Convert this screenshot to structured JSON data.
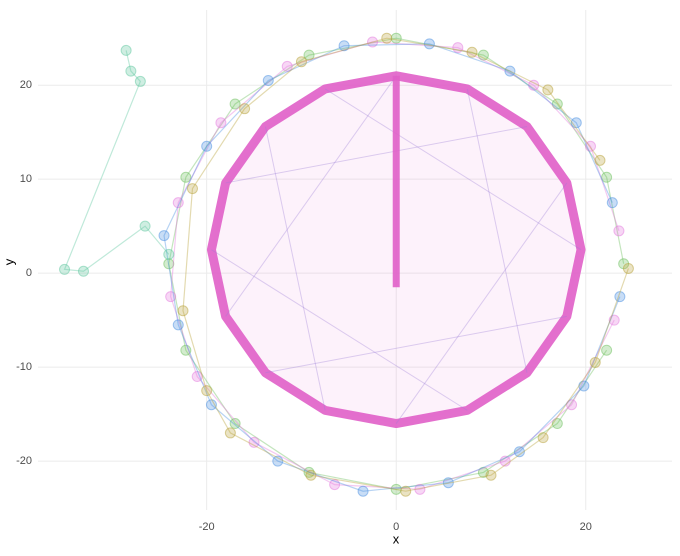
{
  "chart_data": {
    "type": "scatter",
    "xlabel": "x",
    "ylabel": "y",
    "xlim": [
      -37.8,
      29.1
    ],
    "ylim": [
      -25.2,
      28
    ],
    "xticks": [
      -20,
      0,
      20
    ],
    "yticks": [
      -20,
      -10,
      0,
      10,
      20
    ],
    "grid": true,
    "series": [
      {
        "color": "#e05fc8",
        "mode": "polygon",
        "x": [
          19.5,
          18,
          13.8,
          7.5,
          0,
          -7.5,
          -13.8,
          -18,
          -19.5,
          -18,
          -13.8,
          -7.5,
          0,
          7.5,
          13.8,
          18
        ],
        "y": [
          2.5,
          9.6,
          15.6,
          19.6,
          21,
          19.6,
          15.6,
          9.6,
          2.5,
          -4.6,
          -10.6,
          -14.6,
          -16,
          -14.6,
          -10.6,
          -4.6
        ]
      },
      {
        "color": "#e05fc8",
        "mode": "line",
        "x": [
          0,
          0
        ],
        "y": [
          -1.5,
          21
        ]
      },
      {
        "color": "#6cbf5c",
        "mode": "lines+markers",
        "x": [
          24,
          22.2,
          17,
          9.2,
          0,
          -9.2,
          -17,
          -22.2,
          -24,
          -22.2,
          -17,
          -9.2,
          0,
          9.2,
          17,
          22.2
        ],
        "y": [
          1,
          10.2,
          18,
          23.2,
          25,
          23.2,
          18,
          10.2,
          1,
          -8.2,
          -16,
          -21.2,
          -23,
          -21.2,
          -16,
          -8.2
        ]
      },
      {
        "color": "#e379dd",
        "mode": "lines+markers",
        "x": [
          23.5,
          20.5,
          14.5,
          6.5,
          -2.5,
          -11.5,
          -18.5,
          -23,
          -23.8,
          -21,
          -15,
          -6.5,
          2.5,
          11.5,
          18.5,
          23
        ],
        "y": [
          4.5,
          13.5,
          20,
          24,
          24.6,
          22,
          16,
          7.5,
          -2.5,
          -11,
          -18,
          -22.5,
          -23,
          -20,
          -14,
          -5
        ]
      },
      {
        "color": "#4a90e2",
        "mode": "lines+markers",
        "x": [
          22.8,
          19,
          12,
          3.5,
          -5.5,
          -13.5,
          -20,
          -24.5,
          -23,
          -19.5,
          -12.5,
          -3.5,
          5.5,
          13,
          19.8,
          23.6
        ],
        "y": [
          7.5,
          16,
          21.5,
          24.4,
          24.2,
          20.5,
          13.5,
          4,
          -5.5,
          -14,
          -20,
          -23.2,
          -22.3,
          -19,
          -12,
          -2.5
        ]
      },
      {
        "color": "#b8a23a",
        "mode": "lines+markers",
        "x": [
          21.5,
          16,
          8,
          -1,
          -10,
          -16,
          -21.5,
          -22.5,
          -20,
          -17.5,
          -9,
          1,
          10,
          15.5,
          21,
          24.5
        ],
        "y": [
          12,
          19.5,
          23.5,
          25,
          22.5,
          17.5,
          9,
          -4,
          -12.5,
          -17,
          -21.5,
          -23.2,
          -21.5,
          -17.5,
          -9.5,
          0.5
        ]
      },
      {
        "color": "#5fc7a0",
        "mode": "lines+markers",
        "x": [
          -28.5,
          -28,
          -27,
          -35,
          -33,
          -26.5,
          -24
        ],
        "y": [
          23.7,
          21.5,
          20.4,
          0.4,
          0.2,
          5,
          2
        ]
      }
    ]
  }
}
